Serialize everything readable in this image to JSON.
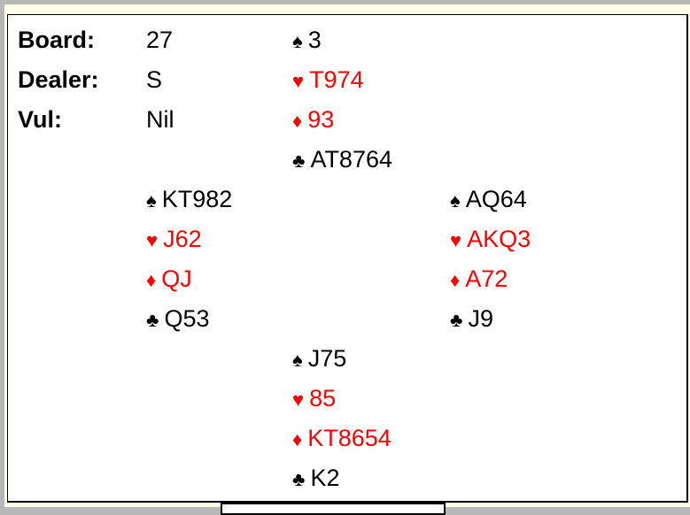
{
  "info": {
    "board_label": "Board:",
    "board": "27",
    "dealer_label": "Dealer:",
    "dealer": "S",
    "vul_label": "Vul:",
    "vul": "Nil"
  },
  "colors": {
    "red_suits": "#ff0000",
    "black_suits": "#000000"
  },
  "hands": {
    "north": {
      "spades": "3",
      "hearts": "T974",
      "diamonds": "93",
      "clubs": "AT8764"
    },
    "west": {
      "spades": "KT982",
      "hearts": "J62",
      "diamonds": "QJ",
      "clubs": "Q53"
    },
    "east": {
      "spades": "AQ64",
      "hearts": "AKQ3",
      "diamonds": "A72",
      "clubs": "J9"
    },
    "south": {
      "spades": "J75",
      "hearts": "85",
      "diamonds": "KT8654",
      "clubs": "K2"
    }
  }
}
